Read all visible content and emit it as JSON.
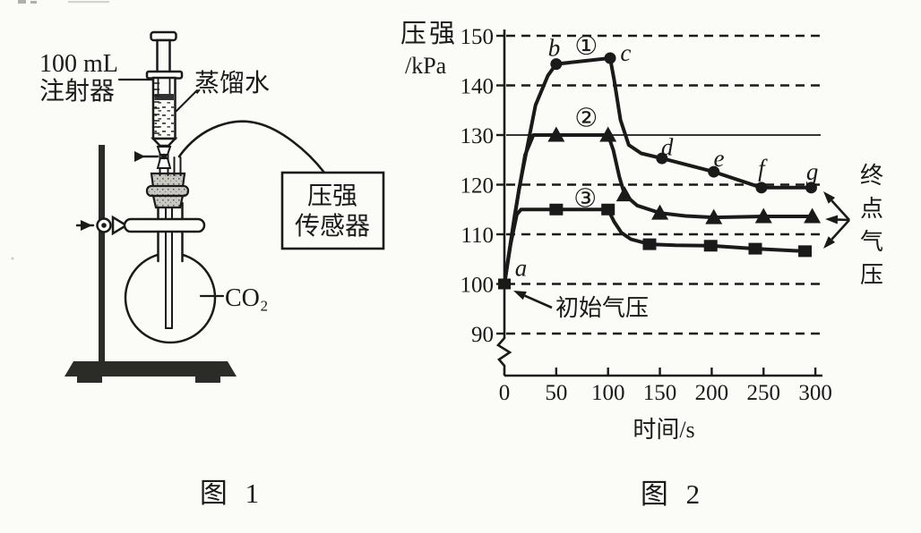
{
  "page": {
    "background": "#fbfbf8",
    "ink": "#1a1a1a"
  },
  "figure1": {
    "caption": "图 1",
    "labels": {
      "syringe_line1": "100 mL",
      "syringe_line2": "注射器",
      "water": "蒸馏水",
      "sensor_line1": "压强",
      "sensor_line2": "传感器",
      "gas": "CO₂"
    }
  },
  "figure2": {
    "caption": "图 2"
  },
  "chart_data": {
    "type": "line",
    "title": "",
    "ylabel_line1": "压强",
    "ylabel_line2": "/kPa",
    "xlabel": "时间/s",
    "xlim": [
      0,
      300
    ],
    "ylim": [
      90,
      150
    ],
    "x_ticks": [
      0,
      50,
      100,
      150,
      200,
      250,
      300
    ],
    "y_ticks": [
      90,
      100,
      110,
      120,
      130,
      140,
      150
    ],
    "grid": "horizontal dashed gridlines at each y tick, solid line at 130, y-axis break below 90",
    "solid_gridline_at": 130,
    "y_axis_break_below": 90,
    "legend_position": "labels ① ② ③ drawn on curves",
    "series": [
      {
        "name": "①",
        "marker": "circle",
        "label_pos": [
          79,
          148
        ],
        "line": [
          [
            0,
            100
          ],
          [
            14,
            119
          ],
          [
            30,
            136
          ],
          [
            42,
            142
          ],
          [
            50,
            144.3
          ],
          [
            102,
            145.5
          ],
          [
            106,
            141
          ],
          [
            112,
            133
          ],
          [
            120,
            128
          ],
          [
            132,
            126.3
          ],
          [
            152,
            125.3
          ],
          [
            202,
            122.6
          ],
          [
            248,
            119.4
          ],
          [
            296,
            119.4
          ]
        ],
        "markers": [
          [
            50,
            144.3
          ],
          [
            102,
            145.5
          ],
          [
            152,
            125.3
          ],
          [
            202,
            122.6
          ],
          [
            248,
            119.4
          ],
          [
            296,
            119.4
          ]
        ]
      },
      {
        "name": "②",
        "marker": "triangle",
        "label_pos": [
          79,
          133.5
        ],
        "line": [
          [
            0,
            100
          ],
          [
            10,
            114
          ],
          [
            20,
            126
          ],
          [
            28,
            130
          ],
          [
            100,
            130
          ],
          [
            105,
            127
          ],
          [
            111,
            121.5
          ],
          [
            116,
            118
          ],
          [
            128,
            115.8
          ],
          [
            150,
            114.3
          ],
          [
            175,
            113.7
          ],
          [
            202,
            113.4
          ],
          [
            250,
            113.6
          ],
          [
            297,
            113.6
          ]
        ],
        "markers": [
          [
            50,
            130
          ],
          [
            100,
            130
          ],
          [
            116,
            118
          ],
          [
            150,
            114.3
          ],
          [
            202,
            113.4
          ],
          [
            250,
            113.6
          ],
          [
            297,
            113.6
          ]
        ]
      },
      {
        "name": "③",
        "marker": "square",
        "label_pos": [
          78,
          117.3
        ],
        "line": [
          [
            0,
            100
          ],
          [
            6,
            108
          ],
          [
            12,
            114
          ],
          [
            16,
            115
          ],
          [
            100,
            115
          ],
          [
            106,
            112.5
          ],
          [
            113,
            110.3
          ],
          [
            122,
            109
          ],
          [
            140,
            108
          ],
          [
            165,
            107.8
          ],
          [
            199,
            107.7
          ],
          [
            242,
            107.1
          ],
          [
            290,
            106.6
          ]
        ],
        "markers": [
          [
            50,
            115
          ],
          [
            100,
            115
          ],
          [
            140,
            108
          ],
          [
            199,
            107.7
          ],
          [
            242,
            107.1
          ],
          [
            290,
            106.6
          ]
        ]
      }
    ],
    "a_point": {
      "t": 0,
      "v": 100,
      "shape": "square"
    },
    "point_labels": [
      {
        "text": "a",
        "t": 16,
        "v": 103.2
      },
      {
        "text": "b",
        "t": 48,
        "v": 147.6
      },
      {
        "text": "c",
        "t": 117,
        "v": 146.6
      },
      {
        "text": "d",
        "t": 157,
        "v": 127.6
      },
      {
        "text": "e",
        "t": 207,
        "v": 125.3
      },
      {
        "text": "f",
        "t": 248,
        "v": 123.3
      },
      {
        "text": "g",
        "t": 297,
        "v": 122.6
      }
    ],
    "annotations": {
      "initial_pressure": {
        "text": "初始气压",
        "points_to": "point a (0 s, 100 kPa)"
      },
      "end_pressure": {
        "text": "终点气压",
        "points_to": "final pressures of curves ① ② ③ (≈119.5, 113.5, 107 kPa)"
      }
    }
  }
}
